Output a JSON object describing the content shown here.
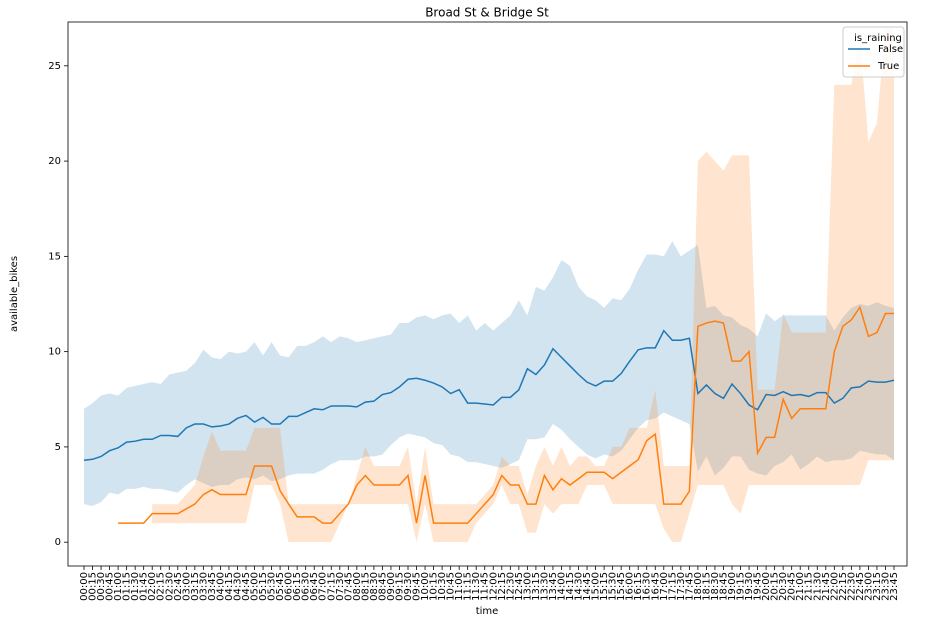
{
  "chart_data": {
    "type": "line",
    "title": "Broad St & Bridge St",
    "x_label": "time",
    "y_label": "available_bikes",
    "categories": [
      "00:00",
      "00:15",
      "00:30",
      "00:45",
      "01:00",
      "01:15",
      "01:30",
      "01:45",
      "02:00",
      "02:15",
      "02:30",
      "02:45",
      "03:00",
      "03:15",
      "03:30",
      "03:45",
      "04:00",
      "04:15",
      "04:30",
      "04:45",
      "05:00",
      "05:15",
      "05:30",
      "05:45",
      "06:00",
      "06:15",
      "06:30",
      "06:45",
      "07:00",
      "07:15",
      "07:30",
      "07:45",
      "08:00",
      "08:15",
      "08:30",
      "08:45",
      "09:00",
      "09:15",
      "09:30",
      "09:45",
      "10:00",
      "10:15",
      "10:30",
      "10:45",
      "11:00",
      "11:15",
      "11:30",
      "11:45",
      "12:00",
      "12:15",
      "12:30",
      "12:45",
      "13:00",
      "13:15",
      "13:30",
      "13:45",
      "14:00",
      "14:15",
      "14:30",
      "14:45",
      "15:00",
      "15:15",
      "15:30",
      "15:45",
      "16:00",
      "16:15",
      "16:30",
      "16:45",
      "17:00",
      "17:15",
      "17:30",
      "17:45",
      "18:00",
      "18:15",
      "18:30",
      "18:45",
      "19:00",
      "19:15",
      "19:30",
      "19:45",
      "20:00",
      "20:15",
      "20:30",
      "20:45",
      "21:00",
      "21:15",
      "21:30",
      "21:45",
      "22:00",
      "22:15",
      "22:30",
      "22:45",
      "23:00",
      "23:15",
      "23:30",
      "23:45"
    ],
    "ylim": [
      -1.25,
      27.3
    ],
    "yticks": [
      0,
      5,
      10,
      15,
      20,
      25
    ],
    "grid": false,
    "legend_title": "is_raining",
    "legend_position": "upper right",
    "series": [
      {
        "name": "False",
        "color": "#1f77b4",
        "values": [
          4.3,
          4.35,
          4.5,
          4.8,
          4.95,
          5.25,
          5.3,
          5.4,
          5.4,
          5.6,
          5.6,
          5.55,
          6.0,
          6.2,
          6.2,
          6.05,
          6.1,
          6.2,
          6.5,
          6.65,
          6.3,
          6.55,
          6.2,
          6.2,
          6.6,
          6.6,
          6.8,
          7.0,
          6.95,
          7.15,
          7.15,
          7.15,
          7.1,
          7.35,
          7.4,
          7.75,
          7.85,
          8.15,
          8.55,
          8.6,
          8.5,
          8.35,
          8.15,
          7.8,
          8.0,
          7.3,
          7.3,
          7.25,
          7.2,
          7.6,
          7.6,
          8.0,
          9.1,
          8.8,
          9.3,
          10.15,
          9.7,
          9.25,
          8.8,
          8.4,
          8.2,
          8.45,
          8.45,
          8.85,
          9.5,
          10.1,
          10.2,
          10.2,
          11.1,
          10.6,
          10.6,
          10.7,
          7.8,
          8.25,
          7.8,
          7.55,
          8.3,
          7.8,
          7.2,
          6.95,
          7.75,
          7.7,
          7.9,
          7.7,
          7.75,
          7.65,
          7.85,
          7.85,
          7.3,
          7.55,
          8.1,
          8.15,
          8.45,
          8.4,
          8.4,
          8.5
        ],
        "upper": [
          7.0,
          7.3,
          7.7,
          7.8,
          7.7,
          8.1,
          8.2,
          8.3,
          8.4,
          8.3,
          8.8,
          8.9,
          9.0,
          9.4,
          10.1,
          9.7,
          9.6,
          10.0,
          9.9,
          10.0,
          10.5,
          9.8,
          10.5,
          9.8,
          9.7,
          10.3,
          10.3,
          10.5,
          10.8,
          10.5,
          10.8,
          10.7,
          10.5,
          10.6,
          10.7,
          10.8,
          10.9,
          11.5,
          11.5,
          11.8,
          11.9,
          11.7,
          11.9,
          12.0,
          11.5,
          11.9,
          11.1,
          11.5,
          11.1,
          11.5,
          11.9,
          12.7,
          11.9,
          13.4,
          13.2,
          13.9,
          14.8,
          14.5,
          13.4,
          12.9,
          12.7,
          12.3,
          12.8,
          12.7,
          13.3,
          14.3,
          15.1,
          15.1,
          15.0,
          15.8,
          15.0,
          15.3,
          15.6,
          12.3,
          12.4,
          11.9,
          11.8,
          11.4,
          11.2,
          10.8,
          12.0,
          11.6,
          11.9,
          11.9,
          11.9,
          11.9,
          11.9,
          11.9,
          11.1,
          11.8,
          12.3,
          12.5,
          12.4,
          12.6,
          12.4,
          12.3
        ],
        "lower": [
          2.0,
          1.9,
          2.1,
          2.6,
          2.5,
          2.8,
          2.8,
          2.9,
          2.8,
          2.8,
          2.7,
          2.6,
          3.0,
          3.3,
          3.1,
          2.9,
          3.0,
          3.0,
          3.3,
          3.4,
          3.3,
          3.5,
          3.2,
          3.3,
          3.5,
          3.6,
          3.6,
          3.6,
          3.8,
          4.1,
          4.3,
          4.3,
          4.3,
          4.5,
          4.5,
          4.6,
          5.1,
          5.5,
          5.7,
          5.6,
          5.5,
          5.2,
          5.1,
          4.6,
          4.5,
          4.2,
          4.2,
          4.1,
          4.0,
          3.9,
          4.1,
          4.3,
          5.4,
          5.4,
          5.5,
          6.2,
          5.9,
          5.4,
          5.0,
          4.6,
          4.4,
          4.6,
          4.5,
          4.8,
          5.4,
          6.0,
          6.4,
          6.5,
          6.8,
          6.6,
          6.4,
          6.2,
          3.7,
          4.5,
          3.5,
          3.9,
          4.5,
          4.5,
          3.8,
          3.6,
          3.5,
          4.0,
          4.2,
          4.6,
          3.8,
          4.1,
          4.5,
          4.2,
          4.3,
          4.3,
          4.4,
          4.8,
          4.7,
          4.6,
          4.6,
          4.3
        ]
      },
      {
        "name": "True",
        "color": "#ff7f0e",
        "values": [
          null,
          null,
          null,
          null,
          1.0,
          1.0,
          1.0,
          1.0,
          1.5,
          1.5,
          1.5,
          1.5,
          1.75,
          2.0,
          2.5,
          2.75,
          2.5,
          2.5,
          2.5,
          2.5,
          4.0,
          4.0,
          4.0,
          2.7,
          2.0,
          1.33,
          1.33,
          1.33,
          1.0,
          1.0,
          1.5,
          2.0,
          3.0,
          3.5,
          3.0,
          3.0,
          3.0,
          3.0,
          3.5,
          1.0,
          3.5,
          1.0,
          1.0,
          1.0,
          1.0,
          1.0,
          1.5,
          2.0,
          2.5,
          3.5,
          3.0,
          3.0,
          2.0,
          2.0,
          3.5,
          2.75,
          3.33,
          3.0,
          3.33,
          3.67,
          3.67,
          3.67,
          3.33,
          3.67,
          4.0,
          4.33,
          5.33,
          5.67,
          2.0,
          2.0,
          2.0,
          2.67,
          11.33,
          11.5,
          11.6,
          11.5,
          9.5,
          9.5,
          10.0,
          4.67,
          5.5,
          5.5,
          7.5,
          6.5,
          7.0,
          7.0,
          7.0,
          7.0,
          10.0,
          11.33,
          11.67,
          12.33,
          10.8,
          11.0,
          12.0,
          12.0
        ],
        "upper": [
          null,
          null,
          null,
          null,
          null,
          null,
          null,
          null,
          2.0,
          2.0,
          2.0,
          2.0,
          2.5,
          3.0,
          4.5,
          5.8,
          4.8,
          4.8,
          4.8,
          4.8,
          6.0,
          6.0,
          6.0,
          6.0,
          2.0,
          2.0,
          2.0,
          2.0,
          2.0,
          2.0,
          2.0,
          2.0,
          3.5,
          5.0,
          4.0,
          4.0,
          4.0,
          4.0,
          5.0,
          2.0,
          5.0,
          2.0,
          2.0,
          2.0,
          2.0,
          2.0,
          2.0,
          2.5,
          3.0,
          4.5,
          4.0,
          4.0,
          2.5,
          4.0,
          5.0,
          4.0,
          5.0,
          4.0,
          4.5,
          4.5,
          4.0,
          4.0,
          5.0,
          5.0,
          6.0,
          6.0,
          6.0,
          8.0,
          4.0,
          4.0,
          4.0,
          4.0,
          20.0,
          20.5,
          20.0,
          19.5,
          20.3,
          20.3,
          20.3,
          8.0,
          8.0,
          8.0,
          12.0,
          11.0,
          11.0,
          11.0,
          11.0,
          11.0,
          24.0,
          24.0,
          24.0,
          26.5,
          21.0,
          22.0,
          27.0,
          27.0
        ],
        "lower": [
          null,
          null,
          null,
          null,
          null,
          null,
          null,
          null,
          1.0,
          1.0,
          1.0,
          1.0,
          1.0,
          1.0,
          1.0,
          1.0,
          1.0,
          1.0,
          1.0,
          1.0,
          3.0,
          3.0,
          3.0,
          2.0,
          0.0,
          0.0,
          0.0,
          0.0,
          0.0,
          0.0,
          1.0,
          2.0,
          2.0,
          2.0,
          2.0,
          2.0,
          2.0,
          2.0,
          2.0,
          0.0,
          2.0,
          0.0,
          0.0,
          0.0,
          0.0,
          0.0,
          1.0,
          1.5,
          2.0,
          3.0,
          2.0,
          2.0,
          0.5,
          0.5,
          2.0,
          1.5,
          2.0,
          2.0,
          2.0,
          3.0,
          3.0,
          3.0,
          2.0,
          2.0,
          2.0,
          2.0,
          2.0,
          2.0,
          0.7,
          0.0,
          0.0,
          1.5,
          3.0,
          3.0,
          3.0,
          3.0,
          2.0,
          1.5,
          3.0,
          3.0,
          3.0,
          3.0,
          3.0,
          3.0,
          3.0,
          3.0,
          3.0,
          3.0,
          3.0,
          3.0,
          3.0,
          3.0,
          4.3,
          4.3,
          4.3,
          4.3
        ]
      }
    ]
  }
}
